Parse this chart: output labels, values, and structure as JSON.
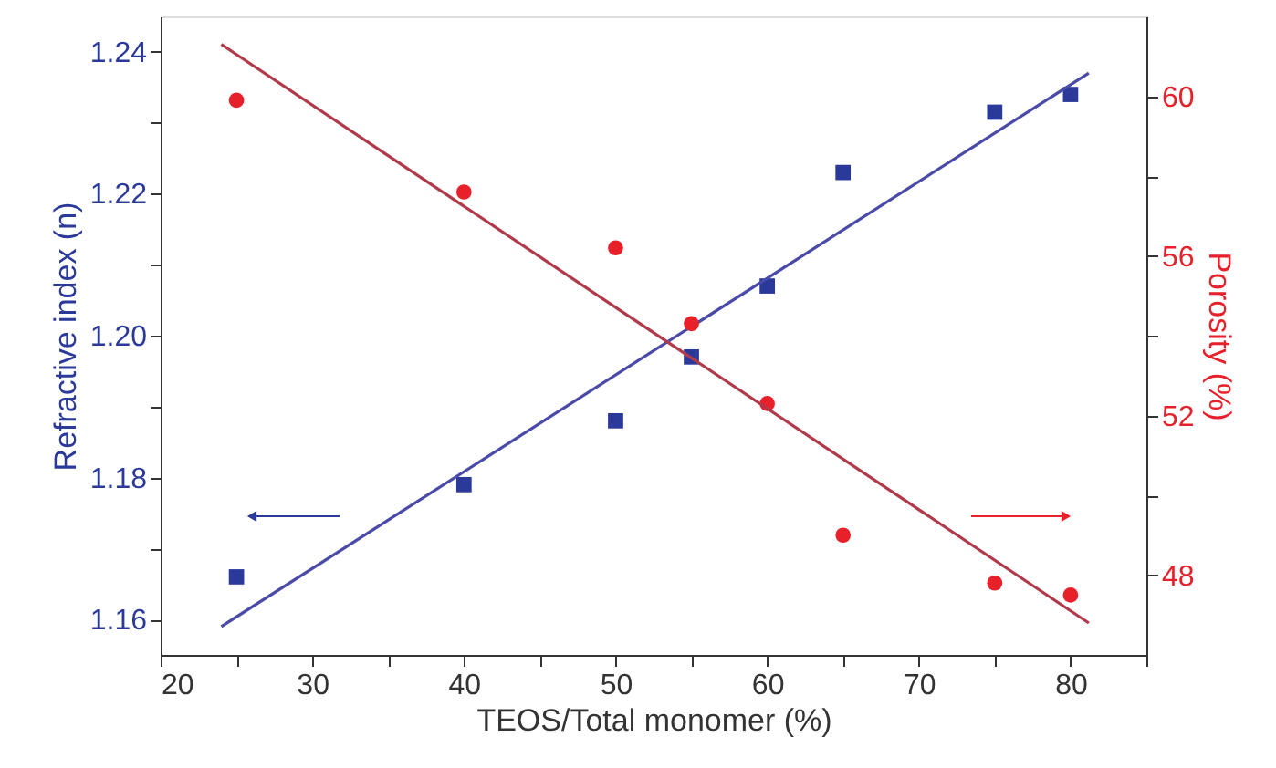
{
  "chart_data": {
    "type": "scatter",
    "xlabel": "TEOS/Total monomer (%)",
    "ylabel": "Refractive index (n)",
    "y2label": "Porosity (%)",
    "xlim": [
      20,
      85
    ],
    "xticks": [
      20,
      {
        "value": 25,
        "label": null
      },
      30,
      {
        "value": 35,
        "label": null
      },
      40,
      {
        "value": 45,
        "label": null
      },
      50,
      {
        "value": 55,
        "label": null
      },
      60,
      {
        "value": 65,
        "label": null
      },
      70,
      {
        "value": 75,
        "label": null
      },
      80,
      {
        "value": 85,
        "label": null
      }
    ],
    "ylim": [
      1.155,
      1.245
    ],
    "yticks": [
      {
        "value": 1.16,
        "label": "1.16"
      },
      {
        "value": 1.17,
        "label": null
      },
      {
        "value": 1.18,
        "label": "1.18"
      },
      {
        "value": 1.19,
        "label": null
      },
      {
        "value": 1.2,
        "label": "1.20"
      },
      {
        "value": 1.21,
        "label": null
      },
      {
        "value": 1.22,
        "label": "1.22"
      },
      {
        "value": 1.23,
        "label": null
      },
      {
        "value": 1.24,
        "label": "1.24"
      }
    ],
    "y2lim": [
      46,
      62
    ],
    "y2ticks": [
      48,
      {
        "value": 50,
        "label": null
      },
      52,
      {
        "value": 54,
        "label": null
      },
      56,
      {
        "value": 58,
        "label": null
      },
      60
    ],
    "grid": false,
    "series": [
      {
        "marker": "square",
        "color": "#2b3a9a",
        "x": [
          25,
          40,
          50,
          55,
          60,
          65,
          75,
          80
        ],
        "values": [
          1.166,
          1.179,
          1.188,
          1.197,
          1.207,
          1.223,
          1.2315,
          1.234
        ]
      },
      {
        "type": "line",
        "line_style": "solid",
        "color": "#4a4aa8",
        "x": [
          24,
          81.2
        ],
        "values": [
          1.159,
          1.237
        ]
      },
      {
        "marker": "circle",
        "axis": "y2",
        "color": "#e8202a",
        "x": [
          25,
          40,
          50,
          55,
          60,
          65,
          75,
          80
        ],
        "values": [
          59.9,
          57.6,
          56.2,
          54.3,
          52.3,
          49.0,
          47.8,
          47.5
        ]
      },
      {
        "type": "line",
        "line_style": "solid",
        "axis": "y2",
        "color": "#b03a4a",
        "x": [
          24,
          81.2
        ],
        "values": [
          61.3,
          46.8
        ]
      }
    ]
  }
}
